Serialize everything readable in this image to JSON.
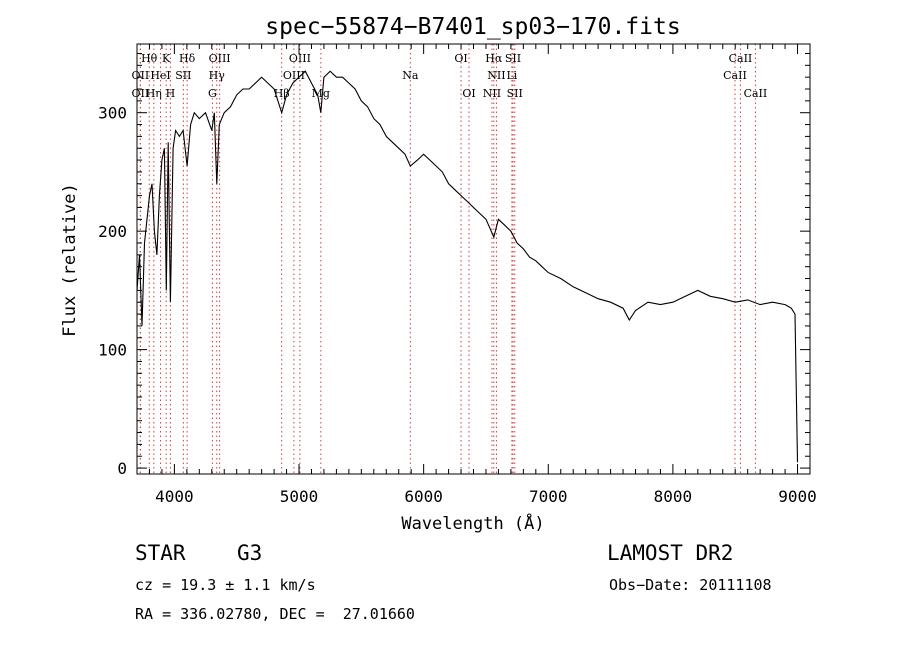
{
  "chart_data": {
    "type": "line",
    "title": "spec−55874−B7401_sp03−170.fits",
    "xlabel": "Wavelength (Å)",
    "ylabel": "Flux (relative)",
    "xlim": [
      3700,
      9100
    ],
    "ylim": [
      -5,
      358
    ],
    "xticks": [
      4000,
      5000,
      6000,
      7000,
      8000,
      9000
    ],
    "yticks": [
      0,
      100,
      200,
      300
    ],
    "xtick_labels": [
      "4000",
      "5000",
      "6000",
      "7000",
      "8000",
      "9000"
    ],
    "ytick_labels": [
      "0",
      "100",
      "200",
      "300"
    ],
    "grid": false,
    "series": [
      {
        "color": "#000000",
        "x": [
          3700,
          3720,
          3740,
          3760,
          3780,
          3800,
          3820,
          3840,
          3860,
          3880,
          3900,
          3920,
          3935,
          3950,
          3968,
          3990,
          4010,
          4040,
          4070,
          4102,
          4130,
          4160,
          4200,
          4250,
          4300,
          4320,
          4340,
          4360,
          4400,
          4450,
          4500,
          4550,
          4600,
          4650,
          4700,
          4750,
          4800,
          4861,
          4900,
          4950,
          5000,
          5050,
          5100,
          5150,
          5175,
          5200,
          5250,
          5300,
          5350,
          5400,
          5450,
          5500,
          5550,
          5600,
          5650,
          5700,
          5750,
          5800,
          5850,
          5893,
          5950,
          6000,
          6050,
          6100,
          6150,
          6200,
          6250,
          6300,
          6350,
          6400,
          6450,
          6500,
          6563,
          6600,
          6650,
          6700,
          6750,
          6800,
          6850,
          6900,
          6950,
          7000,
          7100,
          7200,
          7300,
          7400,
          7500,
          7600,
          7650,
          7700,
          7800,
          7900,
          8000,
          8100,
          8200,
          8300,
          8400,
          8500,
          8600,
          8700,
          8800,
          8900,
          8950,
          8980,
          9000
        ],
        "y": [
          150,
          180,
          120,
          190,
          210,
          230,
          240,
          200,
          180,
          230,
          260,
          270,
          150,
          275,
          140,
          270,
          285,
          280,
          285,
          255,
          290,
          300,
          295,
          300,
          285,
          300,
          240,
          290,
          300,
          305,
          315,
          320,
          320,
          325,
          330,
          325,
          320,
          300,
          315,
          325,
          330,
          335,
          325,
          315,
          300,
          330,
          335,
          330,
          330,
          325,
          320,
          310,
          305,
          295,
          290,
          280,
          275,
          270,
          265,
          255,
          260,
          265,
          260,
          255,
          250,
          240,
          235,
          230,
          225,
          220,
          215,
          210,
          195,
          210,
          205,
          200,
          190,
          185,
          178,
          175,
          170,
          165,
          160,
          153,
          148,
          143,
          140,
          135,
          125,
          133,
          140,
          138,
          140,
          145,
          150,
          145,
          143,
          140,
          142,
          138,
          140,
          138,
          135,
          130,
          5
        ]
      }
    ],
    "line_labels": [
      {
        "text": "Hθ",
        "x": 3798,
        "row": 1
      },
      {
        "text": "K",
        "x": 3934,
        "row": 1
      },
      {
        "text": "Hδ",
        "x": 4102,
        "row": 1
      },
      {
        "text": "OIII",
        "x": 4363,
        "row": 1
      },
      {
        "text": "OIII",
        "x": 5007,
        "row": 1
      },
      {
        "text": "OI",
        "x": 6300,
        "row": 1
      },
      {
        "text": "Hα",
        "x": 6563,
        "row": 1
      },
      {
        "text": "SII",
        "x": 6717,
        "row": 1
      },
      {
        "text": "CaII",
        "x": 8542,
        "row": 1
      },
      {
        "text": "OII",
        "x": 3727,
        "row": 2
      },
      {
        "text": "HeI",
        "x": 3889,
        "row": 2
      },
      {
        "text": "SII",
        "x": 4072,
        "row": 2
      },
      {
        "text": "Hγ",
        "x": 4340,
        "row": 2
      },
      {
        "text": "OIII",
        "x": 4959,
        "row": 2
      },
      {
        "text": "Na",
        "x": 5893,
        "row": 2
      },
      {
        "text": "NII",
        "x": 6584,
        "row": 2
      },
      {
        "text": "Li",
        "x": 6708,
        "row": 2
      },
      {
        "text": "CaII",
        "x": 8498,
        "row": 2
      },
      {
        "text": "OII",
        "x": 3727,
        "row": 3
      },
      {
        "text": "Hη",
        "x": 3835,
        "row": 3
      },
      {
        "text": "H",
        "x": 3968,
        "row": 3
      },
      {
        "text": "G",
        "x": 4305,
        "row": 3
      },
      {
        "text": "Hβ",
        "x": 4861,
        "row": 3
      },
      {
        "text": "Mg",
        "x": 5175,
        "row": 3
      },
      {
        "text": "OI",
        "x": 6364,
        "row": 3
      },
      {
        "text": "NII",
        "x": 6548,
        "row": 3
      },
      {
        "text": "SII",
        "x": 6731,
        "row": 3
      },
      {
        "text": "CaII",
        "x": 8662,
        "row": 3
      }
    ]
  },
  "info": {
    "object_class": "STAR",
    "subclass": "G3",
    "survey": "LAMOST DR2",
    "redshift": "cz = 19.3 ± 1.1 km/s",
    "obs_date": "Obs−Date: 20111108",
    "coords": "RA = 336.02780, DEC =  27.01660"
  }
}
